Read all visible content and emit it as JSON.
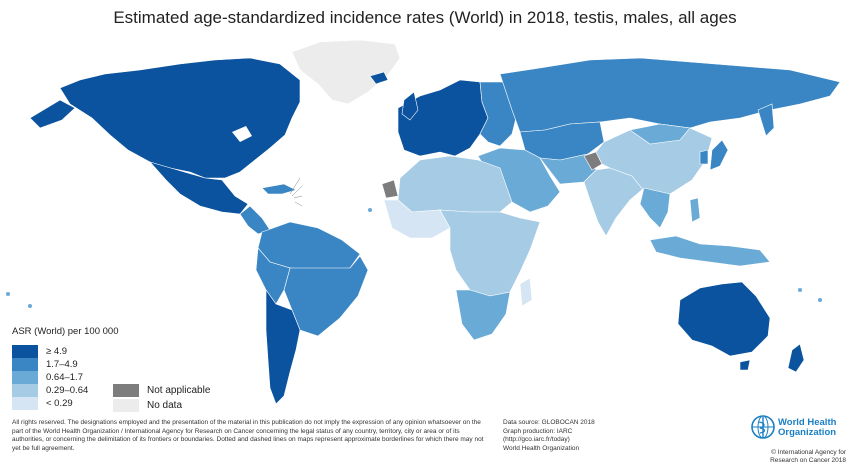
{
  "title": "Estimated age-standardized incidence rates (World) in 2018, testis, males, all ages",
  "legend": {
    "title": "ASR (World) per 100 000",
    "classes": [
      {
        "label": "≥ 4.9",
        "color": "#0b539e"
      },
      {
        "label": "1.7–4.9",
        "color": "#3a86c4"
      },
      {
        "label": "0.64–1.7",
        "color": "#6aaad6"
      },
      {
        "label": "0.29–0.64",
        "color": "#a6cbe5"
      },
      {
        "label": "< 0.29",
        "color": "#d5e5f3"
      }
    ],
    "not_applicable": {
      "label": "Not applicable",
      "color": "#7d7d7d"
    },
    "no_data": {
      "label": "No data",
      "color": "#ececec"
    }
  },
  "footer": {
    "disclaimer": "All rights reserved. The designations employed and the presentation of the material in this publication do not imply the expression of any opinion whatsoever on the part of the World Health Organization / International Agency for Research on Cancer concerning the legal status of any country, territory, city or area or of its authorities, or concerning the delimitation of its frontiers or boundaries. Dotted and dashed lines on maps represent approximate borderlines for which there may not yet be full agreement.",
    "data_source": "Data source: GLOBOCAN 2018",
    "graph_production": "Graph production: IARC",
    "url": "(http://gco.iarc.fr/today)",
    "org": "World Health Organization"
  },
  "who_logo": {
    "line1": "World Health",
    "line2": "Organization",
    "copyright_line1": "© International Agency for",
    "copyright_line2": "Research on Cancer 2018"
  },
  "regions": [
    {
      "name": "North America",
      "class": "≥ 4.9"
    },
    {
      "name": "Greenland",
      "class": "No data"
    },
    {
      "name": "Mexico",
      "class": "≥ 4.9"
    },
    {
      "name": "Central America",
      "class": "1.7–4.9"
    },
    {
      "name": "Northern South America",
      "class": "1.7–4.9"
    },
    {
      "name": "Brazil",
      "class": "1.7–4.9"
    },
    {
      "name": "Chile and Argentina",
      "class": "≥ 4.9"
    },
    {
      "name": "Western Europe",
      "class": "≥ 4.9"
    },
    {
      "name": "Russia",
      "class": "1.7–4.9"
    },
    {
      "name": "Northern Africa",
      "class": "0.64–1.7"
    },
    {
      "name": "Western Sahara",
      "class": "Not applicable"
    },
    {
      "name": "Sub-Saharan Africa",
      "class": "0.29–0.64"
    },
    {
      "name": "Southern Africa",
      "class": "0.64–1.7"
    },
    {
      "name": "Middle East",
      "class": "0.64–1.7"
    },
    {
      "name": "Central Asia",
      "class": "1.7–4.9"
    },
    {
      "name": "South Asia",
      "class": "0.29–0.64"
    },
    {
      "name": "China",
      "class": "0.64–1.7"
    },
    {
      "name": "Japan",
      "class": "1.7–4.9"
    },
    {
      "name": "Southeast Asia",
      "class": "0.64–1.7"
    },
    {
      "name": "Australia",
      "class": "≥ 4.9"
    },
    {
      "name": "New Zealand",
      "class": "≥ 4.9"
    }
  ]
}
